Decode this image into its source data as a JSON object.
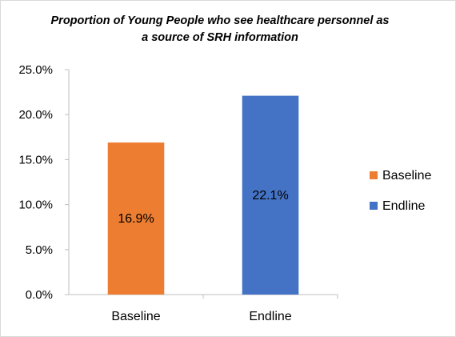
{
  "chart_data": {
    "type": "bar",
    "title": "Proportion of Young People who see healthcare personnel as a source of SRH information",
    "categories": [
      "Baseline",
      "Endline"
    ],
    "values": [
      16.9,
      22.1
    ],
    "value_labels": [
      "16.9%",
      "22.1%"
    ],
    "colors": [
      "#ED7D31",
      "#4472C4"
    ],
    "ylim": [
      0,
      25
    ],
    "yticks": [
      0,
      5,
      10,
      15,
      20,
      25
    ],
    "ytick_labels": [
      "0.0%",
      "5.0%",
      "10.0%",
      "15.0%",
      "20.0%",
      "25.0%"
    ],
    "xlabel": "",
    "ylabel": "",
    "grid": false,
    "legend": {
      "position": "right",
      "entries": [
        "Baseline",
        "Endline"
      ]
    }
  }
}
